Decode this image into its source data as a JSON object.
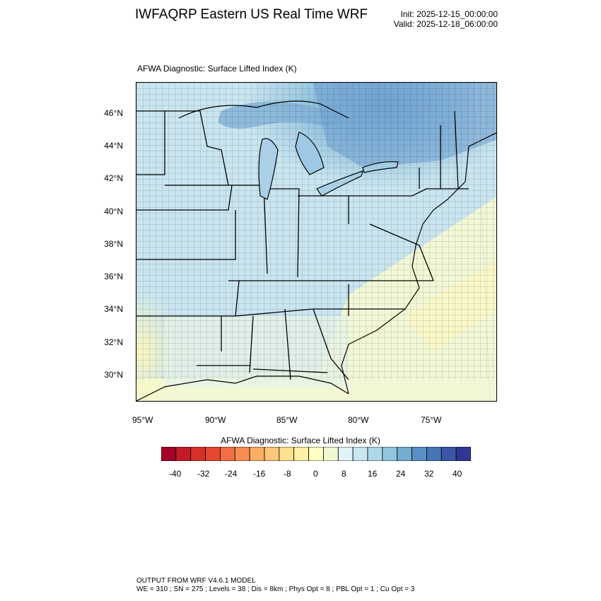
{
  "title": "IWFAQRP Eastern US Real Time WRF",
  "init_time": "Init: 2025-12-15_00:00:00",
  "valid_time": "Valid: 2025-12-18_06:00:00",
  "plot_title": "AFWA Diagnostic: Surface Lifted Index   (K)",
  "map": {
    "lat_labels": [
      "46°N",
      "44°N",
      "42°N",
      "40°N",
      "38°N",
      "36°N",
      "34°N",
      "32°N",
      "30°N"
    ],
    "lon_labels": [
      "95°W",
      "90°W",
      "85°W",
      "80°W",
      "75°W"
    ]
  },
  "colorbar": {
    "title": "AFWA Diagnostic: Surface Lifted Index  (K)",
    "colors": [
      "#a50026",
      "#c21c27",
      "#d73027",
      "#e6482f",
      "#f46d43",
      "#f88d52",
      "#fdae61",
      "#fdc678",
      "#fee090",
      "#fff0a8",
      "#ffffbf",
      "#f0f9d2",
      "#e0f3f8",
      "#c6e6f0",
      "#abd9e9",
      "#92c5de",
      "#74add1",
      "#5b8fc4",
      "#4575b4",
      "#3b56a4",
      "#313695"
    ],
    "tick_labels": [
      "-40",
      "-32",
      "-24",
      "-16",
      "-8",
      "0",
      "8",
      "16",
      "24",
      "32",
      "40"
    ]
  },
  "footer": {
    "line1": "OUTPUT FROM WRF V4.6.1 MODEL",
    "line2": "WE = 310 ; SN = 275 ; Levels = 38 ; Dis = 8km ; Phys Opt = 8 ; PBL Opt = 1 ; Cu Opt = 3"
  }
}
